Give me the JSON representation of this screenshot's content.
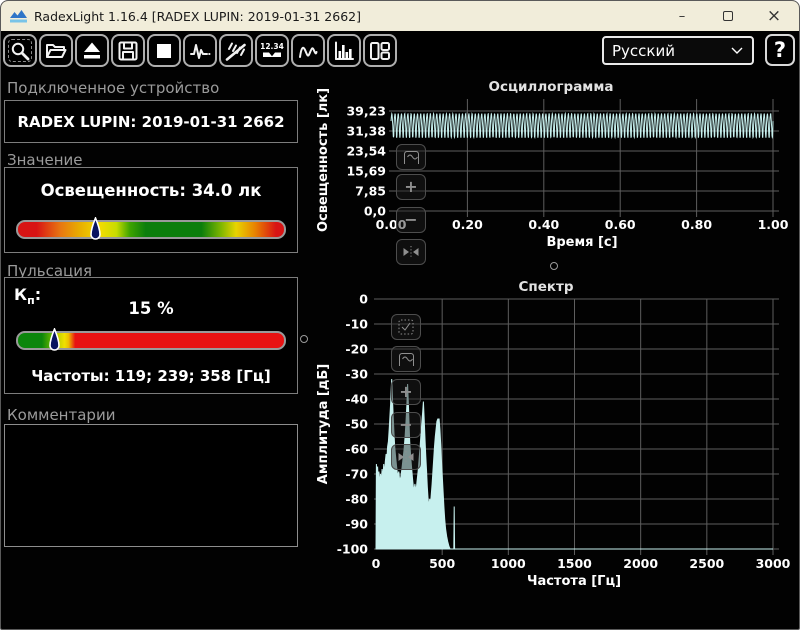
{
  "window": {
    "title": "RadexLight 1.16.4 [RADEX LUPIN: 2019-01-31 2662]",
    "minimize": "–",
    "close": "×"
  },
  "toolbar": {
    "buttons": [
      {
        "icon": "search-device"
      },
      {
        "icon": "open-file"
      },
      {
        "icon": "eject-device"
      },
      {
        "icon": "save-file"
      },
      {
        "icon": "stop"
      },
      {
        "icon": "oscillogram-settings"
      },
      {
        "icon": "pulsation-mode"
      },
      {
        "icon": "numeric-display",
        "label": "12.34"
      },
      {
        "icon": "oscillogram-view"
      },
      {
        "icon": "spectrum-view"
      },
      {
        "icon": "layout-panels"
      }
    ],
    "language_value": "Русский",
    "help_label": "?"
  },
  "device_panel": {
    "header": "Подключенное устройство",
    "device": "RADEX LUPIN: 2019-01-31 2662"
  },
  "value_panel": {
    "header": "Значение",
    "reading": "Освещенность: 34.0 лк",
    "marker_pos_pct": 29
  },
  "pulsation_panel": {
    "header": "Пульсация",
    "kp_k": "К",
    "kp_sub": "п",
    "kp_colon": ":",
    "kp_value": "15 %",
    "marker_pos_pct": 13.5,
    "frequencies": "Частоты: 119; 239; 358 [Гц]"
  },
  "comments_panel": {
    "header": "Комментарии",
    "text": ""
  },
  "chart_buttons": {
    "oscillogram": [
      "fit-view",
      "zoom-in",
      "zoom-out",
      "fit-x"
    ],
    "spectrum": [
      "autoscale",
      "fit-view",
      "zoom-in",
      "zoom-out",
      "fit-x"
    ]
  },
  "chart_data": [
    {
      "type": "line",
      "title": "Осциллограмма",
      "xlabel": "Время [с]",
      "ylabel": "Освещенность [лк]",
      "xlim": [
        0,
        1
      ],
      "ylim": [
        0,
        39.23
      ],
      "grid": true,
      "color": "#c7f0ee",
      "xticks": [
        {
          "v": 0.0,
          "label": "0.00"
        },
        {
          "v": 0.2,
          "label": "0.20"
        },
        {
          "v": 0.4,
          "label": "0.40"
        },
        {
          "v": 0.6,
          "label": "0.60"
        },
        {
          "v": 0.8,
          "label": "0.80"
        },
        {
          "v": 1.0,
          "label": "1.00"
        }
      ],
      "yticks": [
        {
          "v": 39.23,
          "label": "39,23"
        },
        {
          "v": 31.38,
          "label": "31,38"
        },
        {
          "v": 23.54,
          "label": "23,54"
        },
        {
          "v": 15.69,
          "label": "15,69"
        },
        {
          "v": 7.85,
          "label": "7,85"
        },
        {
          "v": 0.0,
          "label": "0,0"
        }
      ],
      "signal": {
        "mean_lux": 34.0,
        "ripple_min_lux": 28.9,
        "ripple_max_lux": 39.23,
        "fundamental_hz": 119,
        "harmonics_hz": [
          239,
          358
        ],
        "duration_s": 1.0
      }
    },
    {
      "type": "area",
      "title": "Спектр",
      "xlabel": "Частота [Гц]",
      "ylabel": "Амплитуда [дБ]",
      "xlim": [
        0,
        3000
      ],
      "ylim": [
        -100,
        0
      ],
      "grid": true,
      "color": "#c7f0ee",
      "xticks": [
        {
          "v": 0,
          "label": "0"
        },
        {
          "v": 500,
          "label": "500"
        },
        {
          "v": 1000,
          "label": "1000"
        },
        {
          "v": 1500,
          "label": "1500"
        },
        {
          "v": 2000,
          "label": "2000"
        },
        {
          "v": 2500,
          "label": "2500"
        },
        {
          "v": 3000,
          "label": "3000"
        }
      ],
      "yticks": [
        {
          "v": 0,
          "label": "0"
        },
        {
          "v": -10,
          "label": "-10"
        },
        {
          "v": -20,
          "label": "-20"
        },
        {
          "v": -30,
          "label": "-30"
        },
        {
          "v": -40,
          "label": "-40"
        },
        {
          "v": -50,
          "label": "-50"
        },
        {
          "v": -60,
          "label": "-60"
        },
        {
          "v": -70,
          "label": "-70"
        },
        {
          "v": -80,
          "label": "-80"
        },
        {
          "v": -90,
          "label": "-90"
        },
        {
          "v": -100,
          "label": "-100"
        }
      ],
      "peaks": [
        {
          "hz": 119,
          "db": -32
        },
        {
          "hz": 239,
          "db": -34
        },
        {
          "hz": 358,
          "db": -41
        },
        {
          "hz": 477,
          "db": -48
        }
      ],
      "points": [
        [
          0,
          -100
        ],
        [
          3,
          -66
        ],
        [
          7,
          -71
        ],
        [
          12,
          -67
        ],
        [
          17,
          -73
        ],
        [
          22,
          -69
        ],
        [
          28,
          -74
        ],
        [
          34,
          -70
        ],
        [
          40,
          -73
        ],
        [
          46,
          -68
        ],
        [
          52,
          -72
        ],
        [
          58,
          -66
        ],
        [
          64,
          -70
        ],
        [
          70,
          -65
        ],
        [
          76,
          -62
        ],
        [
          82,
          -64
        ],
        [
          88,
          -59
        ],
        [
          94,
          -57
        ],
        [
          100,
          -52
        ],
        [
          105,
          -47
        ],
        [
          110,
          -42
        ],
        [
          114,
          -37
        ],
        [
          119,
          -32
        ],
        [
          124,
          -39
        ],
        [
          129,
          -46
        ],
        [
          135,
          -53
        ],
        [
          141,
          -59
        ],
        [
          148,
          -63
        ],
        [
          156,
          -67
        ],
        [
          164,
          -71
        ],
        [
          172,
          -69
        ],
        [
          180,
          -73
        ],
        [
          188,
          -71
        ],
        [
          196,
          -68
        ],
        [
          204,
          -64
        ],
        [
          212,
          -60
        ],
        [
          220,
          -55
        ],
        [
          227,
          -49
        ],
        [
          233,
          -43
        ],
        [
          239,
          -34
        ],
        [
          244,
          -41
        ],
        [
          249,
          -49
        ],
        [
          255,
          -57
        ],
        [
          262,
          -63
        ],
        [
          270,
          -68
        ],
        [
          278,
          -73
        ],
        [
          286,
          -77
        ],
        [
          294,
          -74
        ],
        [
          302,
          -77
        ],
        [
          310,
          -73
        ],
        [
          318,
          -69
        ],
        [
          326,
          -64
        ],
        [
          333,
          -59
        ],
        [
          340,
          -54
        ],
        [
          347,
          -49
        ],
        [
          353,
          -45
        ],
        [
          358,
          -41
        ],
        [
          364,
          -48
        ],
        [
          370,
          -56
        ],
        [
          376,
          -63
        ],
        [
          382,
          -69
        ],
        [
          388,
          -75
        ],
        [
          394,
          -80
        ],
        [
          400,
          -83
        ],
        [
          406,
          -80
        ],
        [
          412,
          -82
        ],
        [
          418,
          -78
        ],
        [
          424,
          -74
        ],
        [
          430,
          -69
        ],
        [
          436,
          -64
        ],
        [
          442,
          -59
        ],
        [
          448,
          -55
        ],
        [
          454,
          -52
        ],
        [
          460,
          -49
        ],
        [
          467,
          -48
        ],
        [
          472,
          -48
        ],
        [
          477,
          -48
        ],
        [
          483,
          -52
        ],
        [
          489,
          -58
        ],
        [
          495,
          -65
        ],
        [
          501,
          -71
        ],
        [
          507,
          -77
        ],
        [
          513,
          -83
        ],
        [
          519,
          -88
        ],
        [
          526,
          -92
        ],
        [
          534,
          -95
        ],
        [
          542,
          -97
        ],
        [
          552,
          -99
        ],
        [
          560,
          -100
        ],
        [
          588,
          -100
        ],
        [
          591,
          -83
        ],
        [
          594,
          -100
        ],
        [
          3000,
          -100
        ]
      ]
    }
  ]
}
